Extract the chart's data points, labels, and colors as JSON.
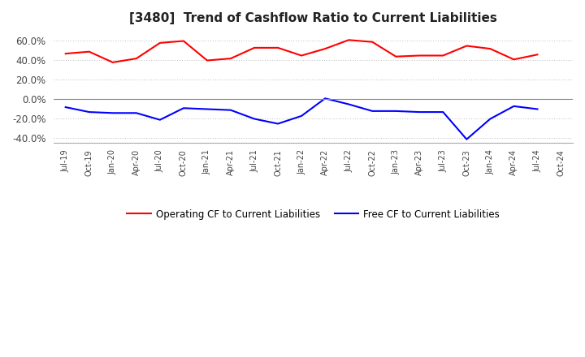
{
  "title": "[3480]  Trend of Cashflow Ratio to Current Liabilities",
  "x_labels": [
    "Jul-19",
    "Oct-19",
    "Jan-20",
    "Apr-20",
    "Jul-20",
    "Oct-20",
    "Jan-21",
    "Apr-21",
    "Jul-21",
    "Oct-21",
    "Jan-22",
    "Apr-22",
    "Jul-22",
    "Oct-22",
    "Jan-23",
    "Apr-23",
    "Jul-23",
    "Oct-23",
    "Jan-24",
    "Apr-24",
    "Jul-24",
    "Oct-24"
  ],
  "operating_cf": [
    47,
    49,
    38,
    42,
    58,
    60,
    40,
    42,
    53,
    53,
    45,
    52,
    61,
    59,
    44,
    45,
    45,
    55,
    52,
    41,
    46,
    null
  ],
  "free_cf": [
    -8,
    -13,
    -14,
    -14,
    -21,
    -9,
    -10,
    -11,
    -20,
    -25,
    -17,
    1,
    -5,
    -12,
    -12,
    -13,
    -13,
    -41,
    -20,
    -7,
    -10,
    null
  ],
  "operating_color": "#ff0000",
  "free_color": "#0000ff",
  "ylim": [
    -45,
    68
  ],
  "yticks": [
    -40,
    -20,
    0,
    20,
    40,
    60
  ],
  "background_color": "#ffffff",
  "plot_bg_color": "#ffffff",
  "grid_color": "#bbbbbb",
  "legend_labels": [
    "Operating CF to Current Liabilities",
    "Free CF to Current Liabilities"
  ],
  "title_color": "#222222"
}
